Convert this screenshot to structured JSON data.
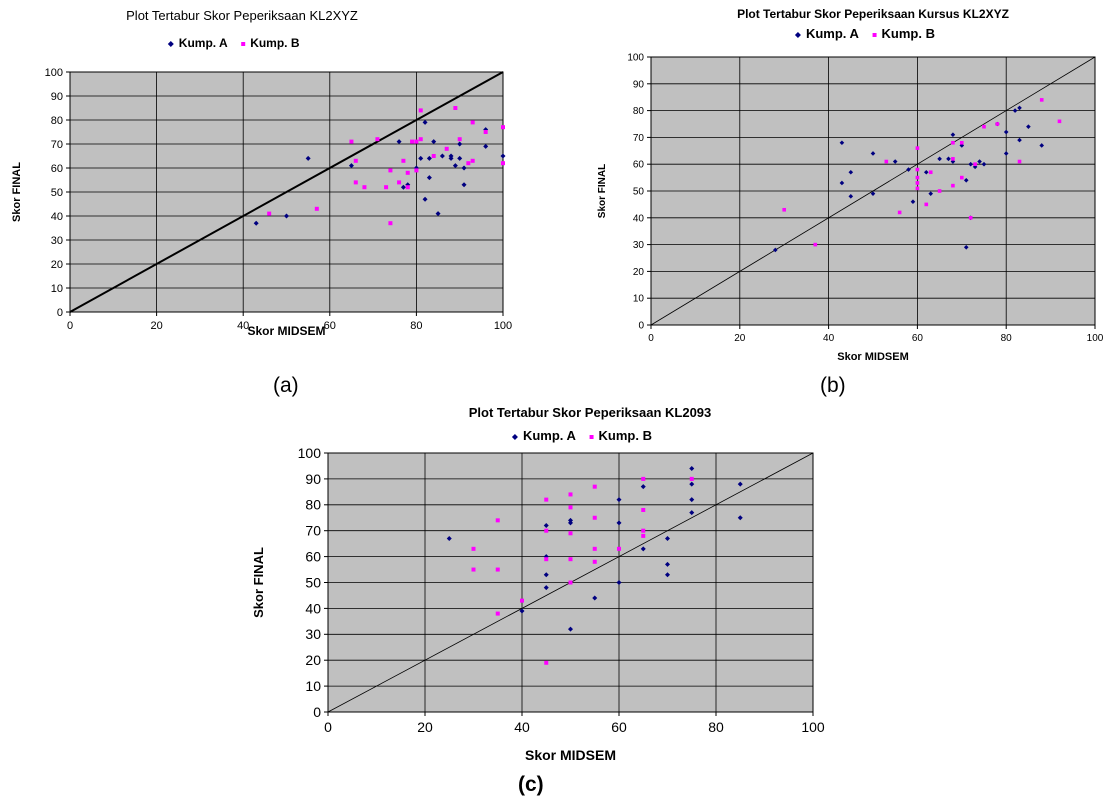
{
  "captions": {
    "a": "(a)",
    "b": "(b)",
    "c": "(c)"
  },
  "colors": {
    "plot_bg": "#c0c0c0",
    "grid": "#000000",
    "series_a": "#000080",
    "series_b": "#ff00ff"
  },
  "chart_data": [
    {
      "id": "a",
      "type": "scatter",
      "title": "Plot Tertabur Skor Peperiksaan KL2XYZ",
      "xlabel": "Skor MIDSEM",
      "ylabel": "Skor FINAL",
      "xlim": [
        0,
        100
      ],
      "ylim": [
        0,
        100
      ],
      "x_ticks": [
        0,
        20,
        40,
        60,
        80,
        100
      ],
      "y_ticks": [
        0,
        10,
        20,
        30,
        40,
        50,
        60,
        70,
        80,
        90,
        100
      ],
      "grid": true,
      "legend": "top-center",
      "reference_line": {
        "from": [
          0,
          0
        ],
        "to": [
          100,
          100
        ]
      },
      "series": [
        {
          "name": "Kump. A",
          "points": [
            [
              43,
              37
            ],
            [
              50,
              40
            ],
            [
              55,
              64
            ],
            [
              65,
              61
            ],
            [
              76,
              71
            ],
            [
              77,
              52
            ],
            [
              78,
              53
            ],
            [
              80,
              60
            ],
            [
              81,
              64
            ],
            [
              82,
              47
            ],
            [
              83,
              64
            ],
            [
              83,
              56
            ],
            [
              84,
              71
            ],
            [
              85,
              41
            ],
            [
              86,
              65
            ],
            [
              88,
              65
            ],
            [
              88,
              64
            ],
            [
              89,
              61
            ],
            [
              90,
              64
            ],
            [
              90,
              70
            ],
            [
              91,
              60
            ],
            [
              91,
              53
            ],
            [
              96,
              76
            ],
            [
              96,
              69
            ],
            [
              100,
              65
            ],
            [
              82,
              79
            ]
          ]
        },
        {
          "name": "Kump. B",
          "points": [
            [
              46,
              41
            ],
            [
              57,
              43
            ],
            [
              65,
              71
            ],
            [
              66,
              63
            ],
            [
              66,
              54
            ],
            [
              68,
              52
            ],
            [
              71,
              72
            ],
            [
              73,
              52
            ],
            [
              74,
              37
            ],
            [
              74,
              59
            ],
            [
              76,
              54
            ],
            [
              77,
              63
            ],
            [
              78,
              58
            ],
            [
              78,
              52
            ],
            [
              79,
              71
            ],
            [
              80,
              59
            ],
            [
              80,
              71
            ],
            [
              81,
              84
            ],
            [
              81,
              72
            ],
            [
              84,
              65
            ],
            [
              87,
              68
            ],
            [
              89,
              85
            ],
            [
              90,
              72
            ],
            [
              92,
              62
            ],
            [
              93,
              79
            ],
            [
              93,
              63
            ],
            [
              96,
              75
            ],
            [
              100,
              77
            ],
            [
              100,
              62
            ]
          ]
        }
      ]
    },
    {
      "id": "b",
      "type": "scatter",
      "title": "Plot Tertabur Skor Peperiksaan Kursus KL2XYZ",
      "xlabel": "Skor MIDSEM",
      "ylabel": "Skor FINAL",
      "xlim": [
        0,
        100
      ],
      "ylim": [
        0,
        100
      ],
      "x_ticks": [
        0,
        20,
        40,
        60,
        80,
        100
      ],
      "y_ticks": [
        0,
        10,
        20,
        30,
        40,
        50,
        60,
        70,
        80,
        90,
        100
      ],
      "grid": true,
      "legend": "top-center",
      "reference_line": {
        "from": [
          0,
          0
        ],
        "to": [
          100,
          100
        ]
      },
      "series": [
        {
          "name": "Kump. A",
          "points": [
            [
              28,
              28
            ],
            [
              43,
              68
            ],
            [
              43,
              53
            ],
            [
              45,
              57
            ],
            [
              45,
              48
            ],
            [
              50,
              64
            ],
            [
              50,
              49
            ],
            [
              55,
              61
            ],
            [
              58,
              58
            ],
            [
              59,
              46
            ],
            [
              62,
              57
            ],
            [
              63,
              49
            ],
            [
              65,
              62
            ],
            [
              67,
              62
            ],
            [
              68,
              71
            ],
            [
              68,
              61
            ],
            [
              70,
              67
            ],
            [
              71,
              54
            ],
            [
              71,
              29
            ],
            [
              72,
              60
            ],
            [
              72,
              40
            ],
            [
              73,
              59
            ],
            [
              74,
              61
            ],
            [
              75,
              60
            ],
            [
              78,
              75
            ],
            [
              80,
              72
            ],
            [
              80,
              64
            ],
            [
              82,
              80
            ],
            [
              83,
              81
            ],
            [
              83,
              69
            ],
            [
              85,
              74
            ],
            [
              88,
              67
            ]
          ]
        },
        {
          "name": "Kump. B",
          "points": [
            [
              30,
              43
            ],
            [
              37,
              30
            ],
            [
              53,
              61
            ],
            [
              56,
              42
            ],
            [
              60,
              66
            ],
            [
              60,
              58
            ],
            [
              60,
              55
            ],
            [
              60,
              53
            ],
            [
              60,
              51
            ],
            [
              62,
              45
            ],
            [
              63,
              57
            ],
            [
              65,
              50
            ],
            [
              68,
              68
            ],
            [
              68,
              62
            ],
            [
              68,
              52
            ],
            [
              70,
              68
            ],
            [
              70,
              55
            ],
            [
              72,
              40
            ],
            [
              73,
              60
            ],
            [
              75,
              74
            ],
            [
              78,
              75
            ],
            [
              83,
              61
            ],
            [
              88,
              84
            ],
            [
              92,
              76
            ]
          ]
        }
      ]
    },
    {
      "id": "c",
      "type": "scatter",
      "title": "Plot Tertabur Skor Peperiksaan KL2093",
      "xlabel": "Skor MIDSEM",
      "ylabel": "Skor FINAL",
      "xlim": [
        0,
        100
      ],
      "ylim": [
        0,
        100
      ],
      "x_ticks": [
        0,
        20,
        40,
        60,
        80,
        100
      ],
      "y_ticks": [
        0,
        10,
        20,
        30,
        40,
        50,
        60,
        70,
        80,
        90,
        100
      ],
      "grid": true,
      "legend": "top-center",
      "reference_line": {
        "from": [
          0,
          0
        ],
        "to": [
          100,
          100
        ]
      },
      "series": [
        {
          "name": "Kump. A",
          "points": [
            [
              25,
              67
            ],
            [
              40,
              39
            ],
            [
              45,
              72
            ],
            [
              45,
              60
            ],
            [
              45,
              53
            ],
            [
              45,
              48
            ],
            [
              50,
              74
            ],
            [
              50,
              73
            ],
            [
              50,
              32
            ],
            [
              55,
              44
            ],
            [
              60,
              82
            ],
            [
              60,
              73
            ],
            [
              60,
              50
            ],
            [
              65,
              87
            ],
            [
              65,
              63
            ],
            [
              70,
              67
            ],
            [
              70,
              57
            ],
            [
              70,
              53
            ],
            [
              75,
              94
            ],
            [
              75,
              88
            ],
            [
              75,
              82
            ],
            [
              75,
              77
            ],
            [
              85,
              88
            ],
            [
              85,
              75
            ]
          ]
        },
        {
          "name": "Kump. B",
          "points": [
            [
              30,
              63
            ],
            [
              30,
              55
            ],
            [
              35,
              74
            ],
            [
              35,
              55
            ],
            [
              35,
              38
            ],
            [
              40,
              43
            ],
            [
              45,
              82
            ],
            [
              45,
              70
            ],
            [
              45,
              59
            ],
            [
              45,
              19
            ],
            [
              50,
              84
            ],
            [
              50,
              79
            ],
            [
              50,
              69
            ],
            [
              50,
              59
            ],
            [
              50,
              50
            ],
            [
              55,
              87
            ],
            [
              55,
              75
            ],
            [
              55,
              63
            ],
            [
              55,
              58
            ],
            [
              60,
              63
            ],
            [
              65,
              90
            ],
            [
              65,
              78
            ],
            [
              65,
              70
            ],
            [
              65,
              68
            ],
            [
              75,
              90
            ]
          ]
        }
      ]
    }
  ]
}
